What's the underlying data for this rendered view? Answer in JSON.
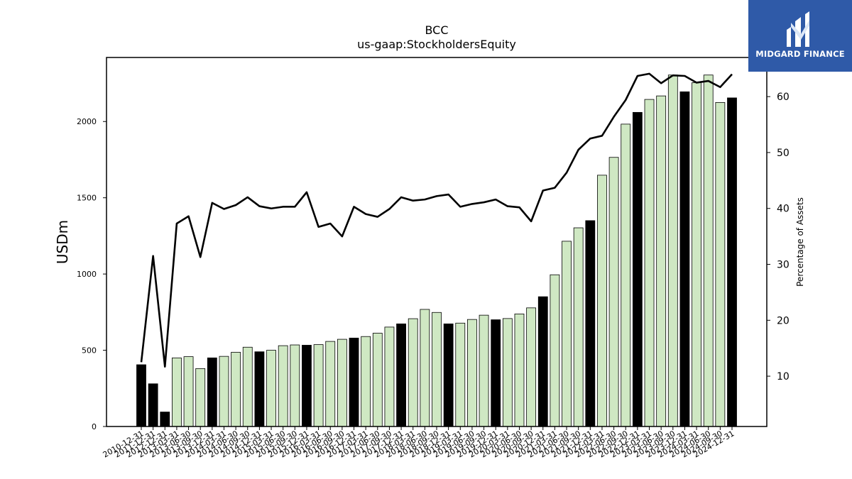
{
  "chart_data": {
    "type": "bar",
    "title": "BCC",
    "subtitle": "us-gaap:StockholdersEquity",
    "ylabel": "USDm",
    "y2label": "Percentage of Assets",
    "ylim": [
      0,
      2420
    ],
    "y2lim": [
      1,
      67
    ],
    "yticks": [
      0,
      500,
      1000,
      1500,
      2000
    ],
    "y2ticks": [
      10,
      20,
      30,
      40,
      50,
      60
    ],
    "grid": false,
    "colors": {
      "annual": "#000000",
      "quarterly": "#cfe8c3",
      "line": "#000000"
    },
    "categories": [
      "2010-12-31",
      "2011-12-31",
      "2012-12-31",
      "2013-03-31",
      "2013-06-30",
      "2013-09-30",
      "2013-12-31",
      "2014-03-31",
      "2014-06-30",
      "2014-09-30",
      "2014-12-31",
      "2015-03-31",
      "2015-06-30",
      "2015-09-30",
      "2015-12-31",
      "2016-03-31",
      "2016-06-30",
      "2016-09-30",
      "2016-12-31",
      "2017-03-31",
      "2017-06-30",
      "2017-09-30",
      "2017-12-31",
      "2018-03-31",
      "2018-06-30",
      "2018-09-30",
      "2018-12-31",
      "2019-03-31",
      "2019-06-30",
      "2019-09-30",
      "2019-12-31",
      "2020-03-31",
      "2020-06-30",
      "2020-09-30",
      "2020-12-31",
      "2021-03-31",
      "2021-06-30",
      "2021-09-30",
      "2021-12-31",
      "2022-03-31",
      "2022-06-30",
      "2022-09-30",
      "2022-12-31",
      "2023-03-31",
      "2023-06-30",
      "2023-09-30",
      "2023-12-31",
      "2024-03-31",
      "2024-06-30",
      "2024-09-30",
      "2024-12-31"
    ],
    "series": [
      {
        "kind": "bar",
        "values": [
          405,
          280,
          95,
          450,
          458,
          380,
          450,
          460,
          487,
          520,
          490,
          500,
          530,
          535,
          533,
          537,
          558,
          572,
          580,
          590,
          612,
          652,
          673,
          707,
          768,
          748,
          673,
          678,
          702,
          730,
          700,
          708,
          738,
          778,
          851,
          995,
          1215,
          1303,
          1350,
          1648,
          1765,
          1983,
          2060,
          2145,
          2168,
          2305,
          2195,
          2255,
          2305,
          2125,
          2155
        ],
        "annual": [
          true,
          true,
          true,
          false,
          false,
          false,
          true,
          false,
          false,
          false,
          true,
          false,
          false,
          false,
          true,
          false,
          false,
          false,
          true,
          false,
          false,
          false,
          true,
          false,
          false,
          false,
          true,
          false,
          false,
          false,
          true,
          false,
          false,
          false,
          true,
          false,
          false,
          false,
          true,
          false,
          false,
          false,
          true,
          false,
          false,
          false,
          true,
          false,
          false,
          false,
          true
        ]
      },
      {
        "kind": "line",
        "name": "Percentage of Assets",
        "values": [
          12.5,
          31.5,
          11.7,
          37.3,
          38.6,
          31.3,
          41.0,
          39.9,
          40.6,
          42.0,
          40.4,
          40.0,
          40.3,
          40.3,
          42.9,
          36.7,
          37.3,
          35.0,
          40.3,
          39.0,
          38.5,
          39.9,
          42.0,
          41.4,
          41.6,
          42.2,
          42.5,
          40.3,
          40.8,
          41.1,
          41.6,
          40.4,
          40.2,
          37.7,
          43.2,
          43.7,
          46.4,
          50.5,
          52.5,
          53.0,
          56.4,
          59.4,
          63.7,
          64.1,
          62.4,
          63.8,
          63.7,
          62.5,
          62.8,
          61.7,
          64.0
        ]
      }
    ]
  },
  "logo": {
    "text": "MIDGARD FINANCE",
    "color": "#2f5aa8"
  }
}
